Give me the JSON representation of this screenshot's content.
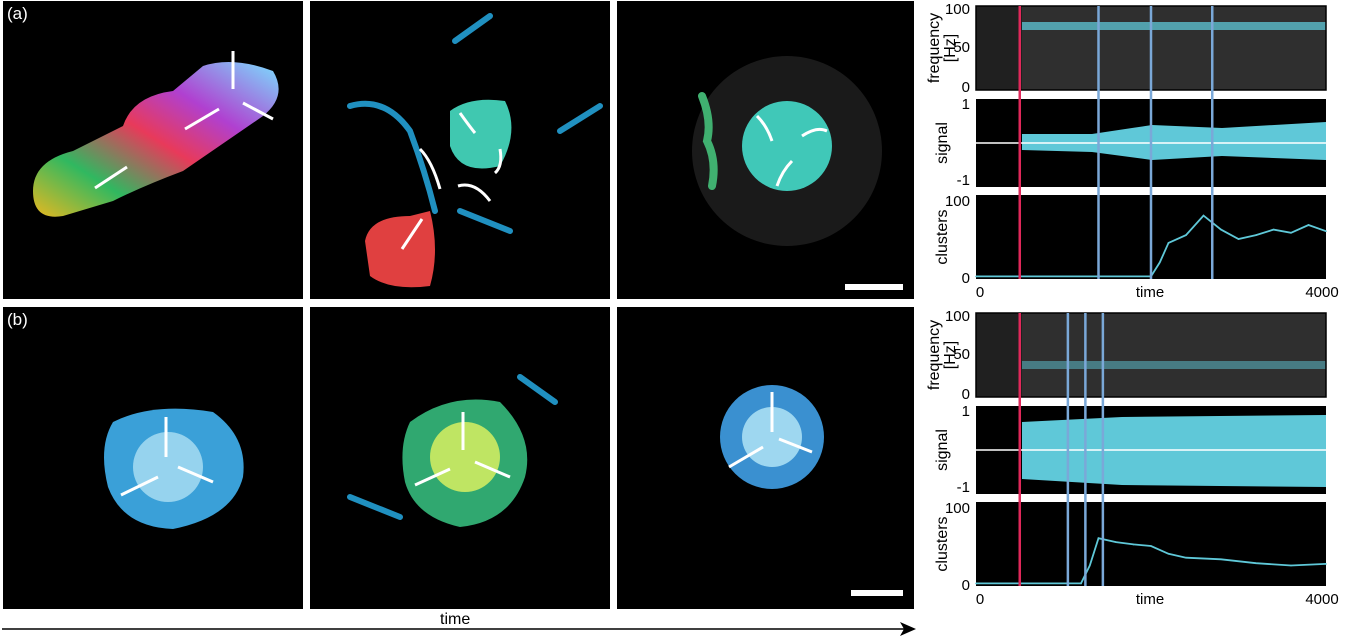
{
  "figure": {
    "rows": [
      {
        "label": "(a)",
        "plot": {
          "frequency": {
            "ylabel": "frequency\n[Hz]",
            "ticks": [
              "100",
              "50",
              "0"
            ]
          },
          "signal": {
            "ylabel": "signal",
            "ticks": [
              "1",
              "-1"
            ]
          },
          "clusters": {
            "ylabel": "clusters",
            "ticks": [
              "100",
              "0"
            ],
            "xticks": [
              "0",
              "time",
              "4000"
            ]
          }
        }
      },
      {
        "label": "(b)",
        "plot": {
          "frequency": {
            "ylabel": "frequency\n[Hz]",
            "ticks": [
              "100",
              "50",
              "0"
            ]
          },
          "signal": {
            "ylabel": "signal",
            "ticks": [
              "1",
              "-1"
            ]
          },
          "clusters": {
            "ylabel": "clusters",
            "ticks": [
              "100",
              "0"
            ],
            "xticks": [
              "0",
              "time",
              "4000"
            ]
          }
        }
      }
    ],
    "bottom_axis_label": "time",
    "colors": {
      "trace": "#5fc8d8",
      "marker_red": "#e0285a",
      "marker_blue": "#7aa8d8",
      "background": "#000000"
    }
  },
  "chart_data": [
    {
      "type": "line",
      "title": "",
      "panel": "(a) clusters",
      "xlabel": "time",
      "ylabel": "clusters",
      "xlim": [
        0,
        4000
      ],
      "ylim": [
        0,
        100
      ],
      "x": [
        0,
        2000,
        2100,
        2200,
        2400,
        2600,
        2800,
        3000,
        3200,
        3400,
        3600,
        3800,
        4000
      ],
      "series": [
        {
          "values": [
            2,
            2,
            20,
            45,
            55,
            80,
            62,
            50,
            55,
            62,
            58,
            68,
            60
          ]
        }
      ],
      "markers_x": [
        500,
        1400,
        2000,
        2700
      ]
    },
    {
      "type": "line",
      "title": "",
      "panel": "(b) clusters",
      "xlabel": "time",
      "ylabel": "clusters",
      "xlim": [
        0,
        4000
      ],
      "ylim": [
        0,
        100
      ],
      "x": [
        0,
        1200,
        1300,
        1400,
        1600,
        1800,
        2000,
        2200,
        2400,
        2800,
        3200,
        3600,
        4000
      ],
      "series": [
        {
          "values": [
            2,
            2,
            25,
            60,
            55,
            52,
            50,
            40,
            35,
            33,
            28,
            25,
            27
          ]
        }
      ],
      "markers_x": [
        500,
        1050,
        1250,
        1450
      ]
    }
  ]
}
